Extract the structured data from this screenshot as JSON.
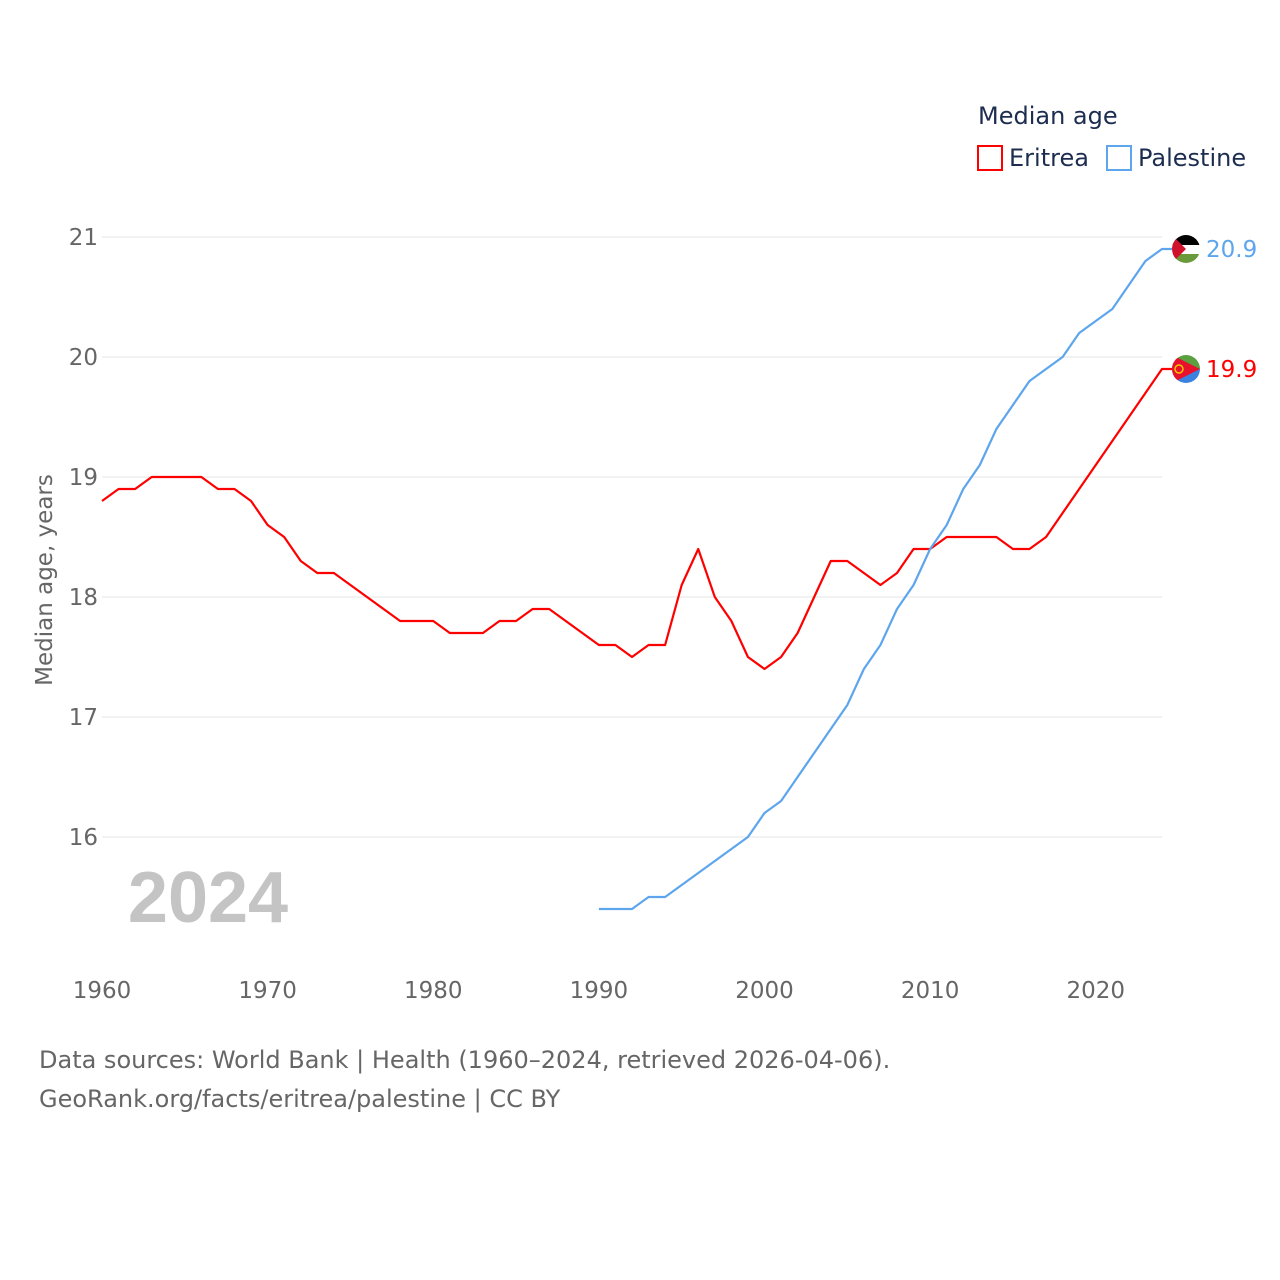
{
  "chart_data": {
    "type": "line",
    "title": "Median age",
    "ylabel": "Median age, years",
    "xlabel": "",
    "xlim": [
      1960,
      2024
    ],
    "ylim": [
      15.2,
      21.3
    ],
    "x_ticks": [
      "1960",
      "1970",
      "1980",
      "1990",
      "2000",
      "2010",
      "2020"
    ],
    "y_ticks": [
      "16",
      "17",
      "18",
      "19",
      "20",
      "21"
    ],
    "grid": true,
    "legend_placement": "top-right",
    "year_watermark": "2024",
    "series": [
      {
        "name": "Eritrea",
        "color": "#ff0000",
        "end_label": "19.9",
        "x_start": 1960,
        "values": [
          18.8,
          18.9,
          18.9,
          19.0,
          19.0,
          19.0,
          19.0,
          18.9,
          18.9,
          18.8,
          18.6,
          18.5,
          18.3,
          18.2,
          18.2,
          18.1,
          18.0,
          17.9,
          17.8,
          17.8,
          17.8,
          17.7,
          17.7,
          17.7,
          17.8,
          17.8,
          17.9,
          17.9,
          17.8,
          17.7,
          17.6,
          17.6,
          17.5,
          17.6,
          17.6,
          18.1,
          18.4,
          18.0,
          17.8,
          17.5,
          17.4,
          17.5,
          17.7,
          18.0,
          18.3,
          18.3,
          18.2,
          18.1,
          18.2,
          18.4,
          18.4,
          18.5,
          18.5,
          18.5,
          18.5,
          18.4,
          18.4,
          18.5,
          18.7,
          18.9,
          19.1,
          19.3,
          19.5,
          19.7,
          19.9
        ]
      },
      {
        "name": "Palestine",
        "color": "#5da5ec",
        "end_label": "20.9",
        "x_start": 1990,
        "values": [
          15.4,
          15.4,
          15.4,
          15.5,
          15.5,
          15.6,
          15.7,
          15.8,
          15.9,
          16.0,
          16.2,
          16.3,
          16.5,
          16.7,
          16.9,
          17.1,
          17.4,
          17.6,
          17.9,
          18.1,
          18.4,
          18.6,
          18.9,
          19.1,
          19.4,
          19.6,
          19.8,
          19.9,
          20.0,
          20.2,
          20.3,
          20.4,
          20.6,
          20.8,
          20.9
        ]
      }
    ]
  },
  "footer": {
    "line1": "Data sources: World Bank | Health (1960–2024, retrieved 2026-04-06).",
    "line2": "GeoRank.org/facts/eritrea/palestine | CC BY"
  }
}
